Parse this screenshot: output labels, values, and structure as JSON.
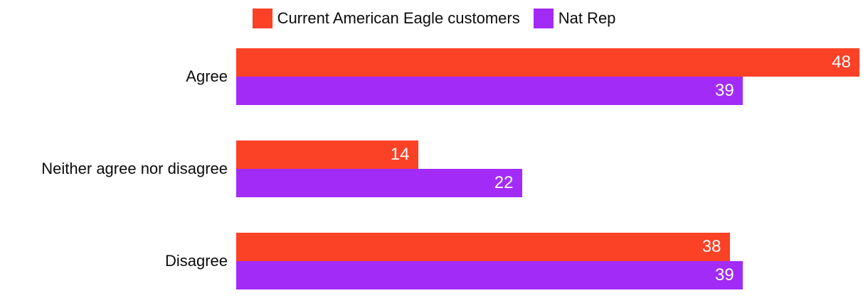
{
  "chart_data": {
    "type": "bar",
    "orientation": "horizontal",
    "categories": [
      "Agree",
      "Neither agree nor disagree",
      "Disagree"
    ],
    "series": [
      {
        "name": "Current American Eagle customers",
        "color": "#fb4126",
        "values": [
          48,
          14,
          38
        ]
      },
      {
        "name": "Nat Rep",
        "color": "#a32bf8",
        "values": [
          39,
          22,
          39
        ]
      }
    ],
    "xlim": [
      0,
      48
    ],
    "value_labels": "inside-end",
    "value_label_color": "#ffffff",
    "legend_position": "top",
    "grid": false,
    "axes_visible": false,
    "background_color": "#ffffff",
    "text_color": "#0b0b0b"
  }
}
